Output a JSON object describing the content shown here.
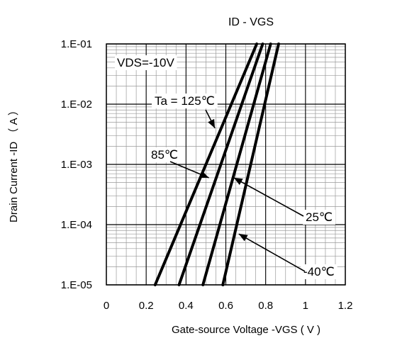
{
  "chart_data": {
    "type": "line",
    "title": "ID - VGS",
    "xlabel": "Gate-source Voltage -VGS ( V )",
    "ylabel": "Drain Current -ID （ A ）",
    "xlim": [
      0,
      1.2
    ],
    "ylim": [
      1e-05,
      0.1
    ],
    "yscale": "log",
    "grid": true,
    "x_ticks": [
      0,
      0.2,
      0.4,
      0.6,
      0.8,
      1,
      1.2
    ],
    "x_tick_labels": [
      "0",
      "0.2",
      "0.4",
      "0.6",
      "0.8",
      "1",
      "1.2"
    ],
    "y_ticks": [
      1e-05,
      0.0001,
      0.001,
      0.01,
      0.1
    ],
    "y_tick_labels": [
      "1.E-05",
      "1.E-04",
      "1.E-03",
      "1.E-02",
      "1.E-01"
    ],
    "series": [
      {
        "name": "Ta = 125℃",
        "x": [
          0.245,
          0.755
        ],
        "y": [
          1e-05,
          0.1
        ]
      },
      {
        "name": "85℃",
        "x": [
          0.365,
          0.785
        ],
        "y": [
          1e-05,
          0.1
        ]
      },
      {
        "name": "25℃",
        "x": [
          0.485,
          0.825
        ],
        "y": [
          1e-05,
          0.1
        ]
      },
      {
        "name": "-40℃",
        "x": [
          0.585,
          0.865
        ],
        "y": [
          1e-05,
          0.1
        ]
      }
    ],
    "annotations": [
      {
        "text": "VDS=-10V"
      },
      {
        "text": "Ta = 125℃",
        "series": 0,
        "point": [
          0.545,
          0.004
        ]
      },
      {
        "text": "85℃",
        "series": 1,
        "point": [
          0.515,
          0.0006
        ]
      },
      {
        "text": "25℃",
        "series": 2,
        "point": [
          0.64,
          0.0006
        ]
      },
      {
        "text": "-40℃",
        "series": 3,
        "point": [
          0.665,
          7e-05
        ]
      }
    ]
  }
}
